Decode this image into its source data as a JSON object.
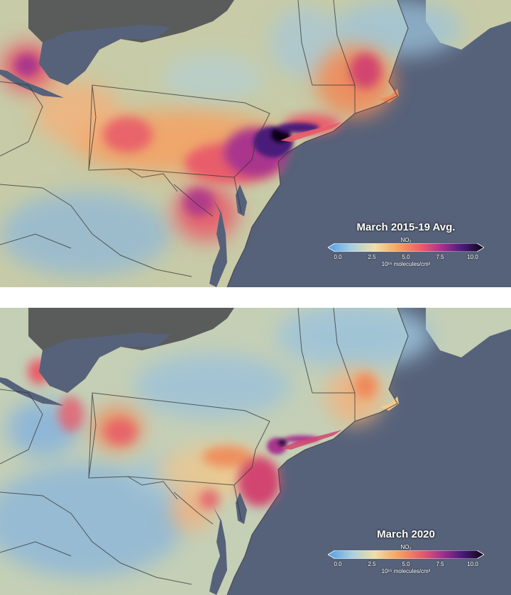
{
  "panels": [
    {
      "title": "March 2015-19 Avg.",
      "variable": "NO₂",
      "unit": "10¹⁵ molecules/cm²",
      "ticks": [
        "0.0",
        "2.5",
        "5.0",
        "7.5",
        "10.0"
      ]
    },
    {
      "title": "March 2020",
      "variable": "NO₂",
      "unit": "10¹⁵ molecules/cm²",
      "ticks": [
        "0.0",
        "2.5",
        "5.0",
        "7.5",
        "10.0"
      ]
    }
  ],
  "colors": {
    "ocean": "#56627a",
    "canada_land": "#5a5c5c",
    "us_land": "#c7cba7",
    "scale": [
      "#4ea0e6",
      "#a8cde0",
      "#eedfa6",
      "#f6a160",
      "#e85d6a",
      "#a9348d",
      "#4a1a7a",
      "#0a0612"
    ]
  }
}
